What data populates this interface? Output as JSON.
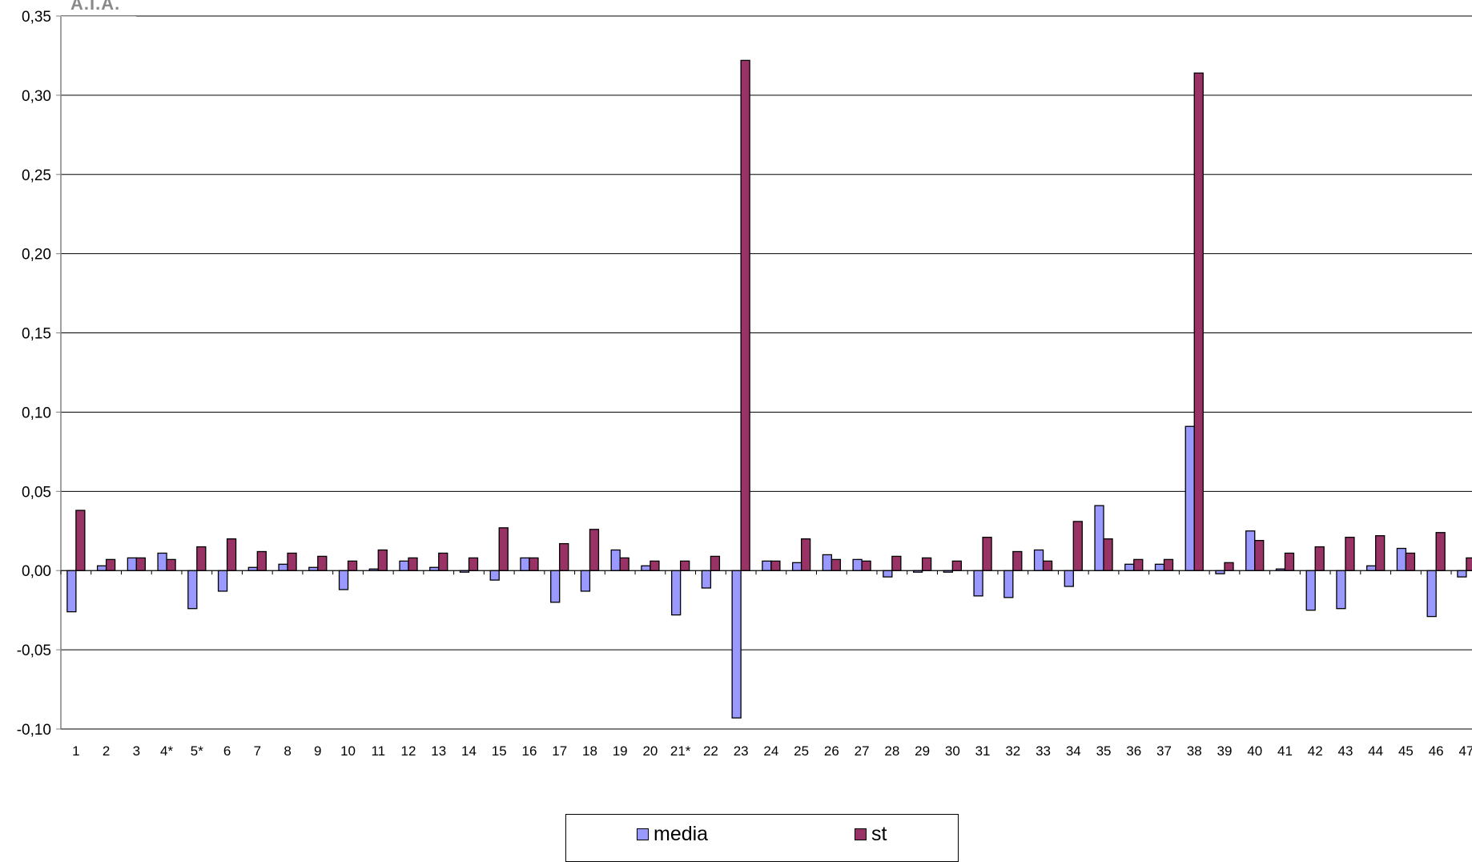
{
  "logo_text": "A.I.A.",
  "colors": {
    "media": "#9999ff",
    "st": "#993366",
    "axis": "#808080",
    "grid": "#000000"
  },
  "chart_data": {
    "type": "bar",
    "title": "",
    "xlabel": "",
    "ylabel": "",
    "ylim": [
      -0.1,
      0.35
    ],
    "yticks": [
      "-0,10",
      "-0,05",
      "0,00",
      "0,05",
      "0,10",
      "0,15",
      "0,20",
      "0,25",
      "0,30",
      "0,35"
    ],
    "grid": true,
    "legend_position": "bottom",
    "categories": [
      "1",
      "2",
      "3",
      "4*",
      "5*",
      "6",
      "7",
      "8",
      "9",
      "10",
      "11",
      "12",
      "13",
      "14",
      "15",
      "16",
      "17",
      "18",
      "19",
      "20",
      "21*",
      "22",
      "23",
      "24",
      "25",
      "26",
      "27",
      "28",
      "29",
      "30",
      "31",
      "32",
      "33",
      "34",
      "35",
      "36",
      "37",
      "38",
      "39",
      "40",
      "41",
      "42",
      "43",
      "44",
      "45",
      "46",
      "47"
    ],
    "series": [
      {
        "name": "media",
        "values": [
          -0.026,
          0.003,
          0.008,
          0.011,
          -0.024,
          -0.013,
          0.002,
          0.004,
          0.002,
          -0.012,
          0.001,
          0.006,
          0.002,
          -0.001,
          -0.006,
          0.008,
          -0.02,
          -0.013,
          0.013,
          0.003,
          -0.028,
          -0.011,
          -0.093,
          0.006,
          0.005,
          0.01,
          0.007,
          -0.004,
          -0.001,
          -0.001,
          -0.016,
          -0.017,
          0.013,
          -0.01,
          0.041,
          0.004,
          0.004,
          0.091,
          -0.002,
          0.025,
          0.001,
          -0.025,
          -0.024,
          0.003,
          0.014,
          -0.029,
          -0.004
        ]
      },
      {
        "name": "st",
        "values": [
          0.038,
          0.007,
          0.008,
          0.007,
          0.015,
          0.02,
          0.012,
          0.011,
          0.009,
          0.006,
          0.013,
          0.008,
          0.011,
          0.008,
          0.027,
          0.008,
          0.017,
          0.026,
          0.008,
          0.006,
          0.006,
          0.009,
          0.322,
          0.006,
          0.02,
          0.007,
          0.006,
          0.009,
          0.008,
          0.006,
          0.021,
          0.012,
          0.006,
          0.031,
          0.02,
          0.007,
          0.007,
          0.314,
          0.005,
          0.019,
          0.011,
          0.015,
          0.021,
          0.022,
          0.011,
          0.024,
          0.008
        ]
      }
    ]
  },
  "legend": {
    "media_label": "media",
    "st_label": "st"
  }
}
